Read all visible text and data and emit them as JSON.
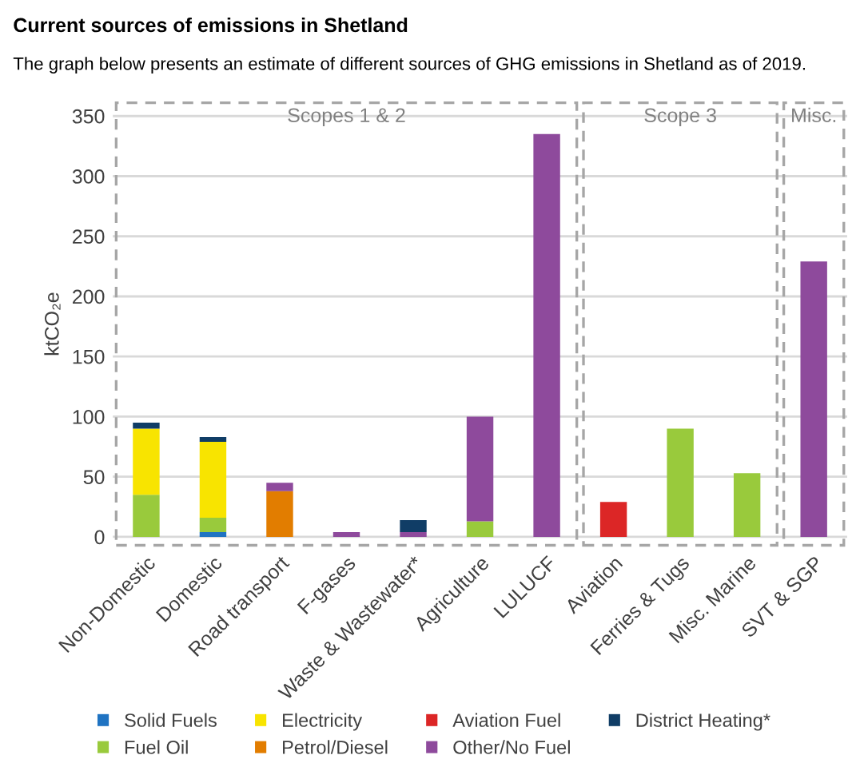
{
  "chart_data": {
    "type": "bar",
    "stacked": true,
    "title": "Current sources of emissions in Shetland",
    "subtitle": "The graph below presents an estimate of different sources of GHG emissions in Shetland as of 2019.",
    "ylabel": "ktCO₂e",
    "categories": [
      "Non-Domestic",
      "Domestic",
      "Road transport",
      "F-gases",
      "Waste & Wastewater*",
      "Agriculture",
      "LULUCF",
      "Aviation",
      "Ferries & Tugs",
      "Misc. Marine",
      "SVT & SGP"
    ],
    "series": [
      {
        "name": "Solid Fuels",
        "color": "#1f73c2",
        "values": [
          0,
          4,
          0,
          0,
          0,
          0,
          0,
          0,
          0,
          0,
          0
        ]
      },
      {
        "name": "Fuel Oil",
        "color": "#99ca3c",
        "values": [
          35,
          12,
          0,
          0,
          0,
          13,
          0,
          0,
          90,
          53,
          0
        ]
      },
      {
        "name": "Electricity",
        "color": "#f8e400",
        "values": [
          55,
          63,
          0,
          0,
          0,
          0,
          0,
          0,
          0,
          0,
          0
        ]
      },
      {
        "name": "Petrol/Diesel",
        "color": "#e27d00",
        "values": [
          0,
          0,
          38,
          0,
          0,
          0,
          0,
          0,
          0,
          0,
          0
        ]
      },
      {
        "name": "Aviation Fuel",
        "color": "#dc2626",
        "values": [
          0,
          0,
          0,
          0,
          0,
          0,
          0,
          29,
          0,
          0,
          0
        ]
      },
      {
        "name": "Other/No Fuel",
        "color": "#8e4a9c",
        "values": [
          0,
          0,
          7,
          4,
          4,
          87,
          335,
          0,
          0,
          0,
          229
        ]
      },
      {
        "name": "District Heating*",
        "color": "#103d66",
        "values": [
          5,
          4,
          0,
          0,
          10,
          0,
          0,
          0,
          0,
          0,
          0
        ]
      }
    ],
    "annotations": [
      "Scopes 1 & 2",
      "Scope 3",
      "Misc."
    ],
    "ylim": [
      -8,
      362
    ],
    "yticks": [
      0,
      50,
      100,
      150,
      200,
      250,
      300,
      350
    ],
    "grid": "y",
    "legend": "bottom"
  }
}
